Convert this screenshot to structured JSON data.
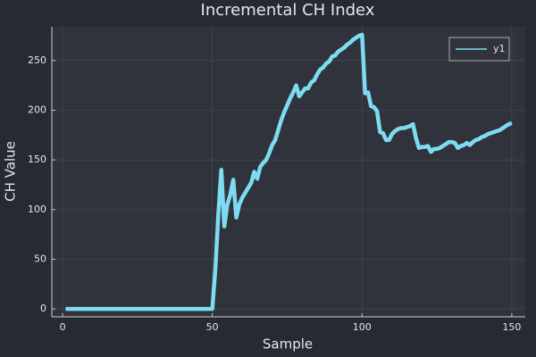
{
  "chart_data": {
    "type": "line",
    "title": "Incremental CH Index",
    "xlabel": "Sample",
    "ylabel": "CH Value",
    "x": [
      1,
      2,
      3,
      4,
      5,
      6,
      7,
      8,
      9,
      10,
      11,
      12,
      13,
      14,
      15,
      16,
      17,
      18,
      19,
      20,
      21,
      22,
      23,
      24,
      25,
      26,
      27,
      28,
      29,
      30,
      31,
      32,
      33,
      34,
      35,
      36,
      37,
      38,
      39,
      40,
      41,
      42,
      43,
      44,
      45,
      46,
      47,
      48,
      49,
      50,
      51,
      52,
      53,
      54,
      55,
      56,
      57,
      58,
      59,
      60,
      61,
      62,
      63,
      64,
      65,
      66,
      67,
      68,
      69,
      70,
      71,
      72,
      73,
      74,
      75,
      76,
      77,
      78,
      79,
      80,
      81,
      82,
      83,
      84,
      85,
      86,
      87,
      88,
      89,
      90,
      91,
      92,
      93,
      94,
      95,
      96,
      97,
      98,
      99,
      100,
      101,
      102,
      103,
      104,
      105,
      106,
      107,
      108,
      109,
      110,
      111,
      112,
      113,
      114,
      115,
      116,
      117,
      118,
      119,
      120,
      121,
      122,
      123,
      124,
      125,
      126,
      127,
      128,
      129,
      130,
      131,
      132,
      133,
      134,
      135,
      136,
      137,
      138,
      139,
      140,
      141,
      142,
      143,
      144,
      145,
      146,
      147,
      148,
      149,
      150
    ],
    "series": [
      {
        "name": "y1",
        "color": "#7ddcf2",
        "values": [
          0,
          0,
          0,
          0,
          0,
          0,
          0,
          0,
          0,
          0,
          0,
          0,
          0,
          0,
          0,
          0,
          0,
          0,
          0,
          0,
          0,
          0,
          0,
          0,
          0,
          0,
          0,
          0,
          0,
          0,
          0,
          0,
          0,
          0,
          0,
          0,
          0,
          0,
          0,
          0,
          0,
          0,
          0,
          0,
          0,
          0,
          0,
          0,
          0,
          0,
          40,
          95,
          140,
          83,
          105,
          115,
          130,
          92,
          105,
          112,
          117,
          122,
          127,
          138,
          131,
          143,
          147,
          150,
          157,
          165,
          170,
          180,
          190,
          198,
          205,
          212,
          218,
          225,
          214,
          218,
          222,
          222,
          228,
          230,
          236,
          241,
          243,
          247,
          249,
          254,
          255,
          259,
          261,
          263,
          266,
          268,
          271,
          273,
          275,
          276,
          217,
          218,
          204,
          203,
          199,
          178,
          177,
          170,
          170,
          176,
          179,
          181,
          182,
          182,
          183,
          184,
          186,
          172,
          162,
          163,
          163,
          164,
          158,
          161,
          161,
          162,
          164,
          166,
          168,
          168,
          167,
          162,
          164,
          165,
          167,
          165,
          168,
          170,
          171,
          173,
          174,
          176,
          177,
          178,
          179,
          180,
          182,
          184,
          186,
          187
        ]
      }
    ],
    "xlim": [
      -3.6,
      154.5
    ],
    "xticks": [
      0,
      50,
      100,
      150
    ],
    "ylim": [
      -8,
      284
    ],
    "yticks": [
      0,
      50,
      100,
      150,
      200,
      250
    ],
    "grid": true,
    "legend": "topright"
  }
}
